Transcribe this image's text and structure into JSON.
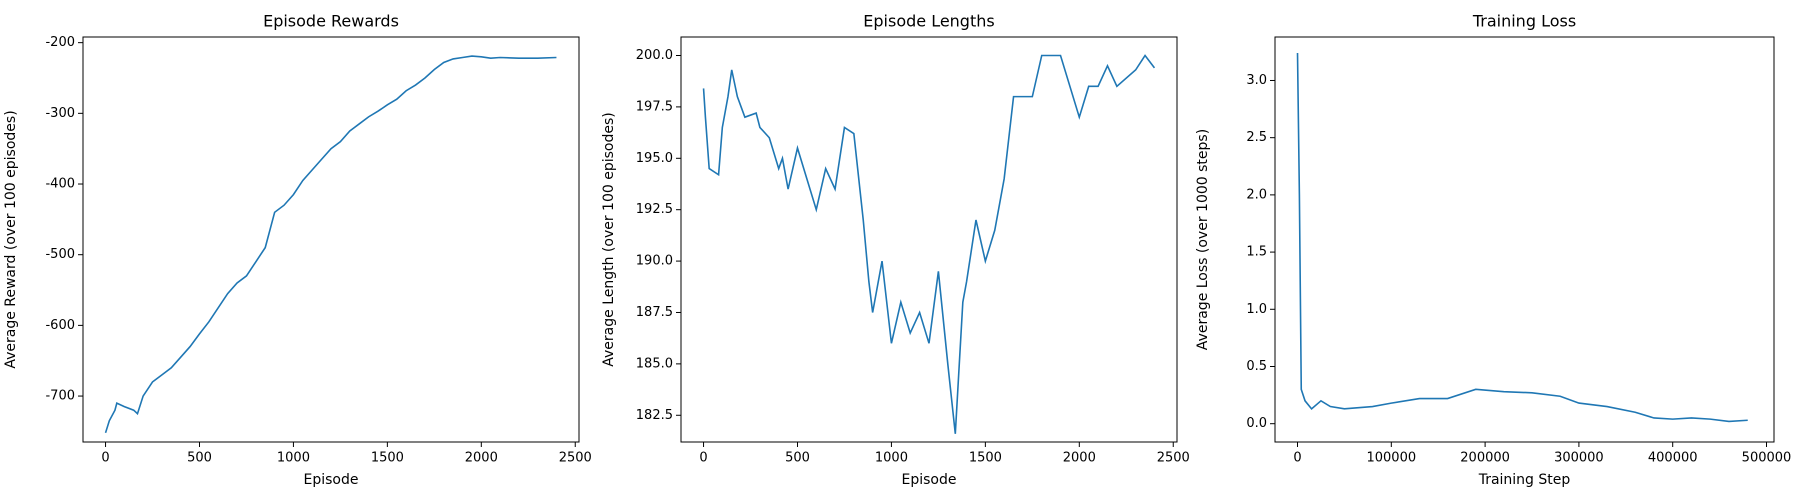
{
  "chart_data": [
    {
      "type": "line",
      "title": "Episode Rewards",
      "xlabel": "Episode",
      "ylabel": "Average Reward (over 100 episodes)",
      "color": "#1f77b4",
      "x": [
        0,
        20,
        50,
        60,
        100,
        150,
        170,
        200,
        250,
        300,
        350,
        400,
        450,
        500,
        550,
        600,
        650,
        700,
        750,
        800,
        850,
        900,
        950,
        1000,
        1050,
        1100,
        1150,
        1200,
        1250,
        1300,
        1350,
        1400,
        1450,
        1500,
        1550,
        1600,
        1650,
        1700,
        1750,
        1800,
        1850,
        1900,
        1950,
        2000,
        2050,
        2100,
        2200,
        2300,
        2400
      ],
      "values": [
        -752,
        -735,
        -720,
        -710,
        -715,
        -720,
        -725,
        -700,
        -680,
        -670,
        -660,
        -645,
        -630,
        -612,
        -595,
        -575,
        -555,
        -540,
        -530,
        -510,
        -490,
        -440,
        -430,
        -415,
        -395,
        -380,
        -365,
        -350,
        -340,
        -325,
        -315,
        -305,
        -297,
        -288,
        -280,
        -268,
        -260,
        -250,
        -238,
        -228,
        -223,
        -221,
        -219,
        -220,
        -222,
        -221,
        -222,
        -222,
        -221
      ],
      "xlim": [
        -120,
        2520
      ],
      "ylim": [
        -765,
        -192
      ],
      "xticks": [
        0,
        500,
        1000,
        1500,
        2000,
        2500
      ],
      "yticks": [
        -700,
        -600,
        -500,
        -400,
        -300,
        -200
      ],
      "grid": false
    },
    {
      "type": "line",
      "title": "Episode Lengths",
      "xlabel": "Episode",
      "ylabel": "Average Length (over 100 episodes)",
      "color": "#1f77b4",
      "x": [
        0,
        10,
        30,
        80,
        100,
        130,
        150,
        180,
        220,
        280,
        300,
        350,
        400,
        420,
        450,
        500,
        550,
        600,
        650,
        700,
        750,
        800,
        850,
        880,
        900,
        950,
        1000,
        1050,
        1100,
        1150,
        1200,
        1250,
        1300,
        1340,
        1380,
        1400,
        1450,
        1500,
        1550,
        1600,
        1650,
        1700,
        1750,
        1800,
        1900,
        2000,
        2050,
        2100,
        2150,
        2200,
        2300,
        2350,
        2400
      ],
      "values": [
        198.4,
        197,
        194.5,
        194.2,
        196.5,
        198,
        199.3,
        198,
        197,
        197.2,
        196.5,
        196,
        194.5,
        195,
        193.5,
        195.5,
        194,
        192.5,
        194.5,
        193.5,
        196.5,
        196.2,
        192,
        189,
        187.5,
        190,
        186,
        188,
        186.5,
        187.5,
        186,
        189.5,
        185,
        181.6,
        188,
        189,
        192,
        190,
        191.5,
        194,
        198,
        198,
        198,
        200,
        200,
        197,
        198.5,
        198.5,
        199.5,
        198.5,
        199.3,
        200,
        199.4
      ],
      "xlim": [
        -120,
        2520
      ],
      "ylim": [
        181.2,
        200.9
      ],
      "xticks": [
        0,
        500,
        1000,
        1500,
        2000,
        2500
      ],
      "yticks": [
        182.5,
        {
          "value": 185,
          "label": "185.0"
        },
        187.5,
        {
          "value": 190,
          "label": "190.0"
        },
        192.5,
        {
          "value": 195,
          "label": "195.0"
        },
        197.5,
        {
          "value": 200,
          "label": "200.0"
        }
      ],
      "grid": false
    },
    {
      "type": "line",
      "title": "Training Loss",
      "xlabel": "Training Step",
      "ylabel": "Average Loss (over 1000 steps)",
      "color": "#1f77b4",
      "x": [
        0,
        2000,
        4000,
        8000,
        15000,
        25000,
        35000,
        50000,
        80000,
        100000,
        130000,
        160000,
        190000,
        220000,
        250000,
        280000,
        300000,
        330000,
        360000,
        380000,
        400000,
        420000,
        440000,
        460000,
        480000
      ],
      "values": [
        3.24,
        2.0,
        0.3,
        0.2,
        0.13,
        0.2,
        0.15,
        0.13,
        0.15,
        0.18,
        0.22,
        0.22,
        0.3,
        0.28,
        0.27,
        0.24,
        0.18,
        0.15,
        0.1,
        0.05,
        0.04,
        0.05,
        0.04,
        0.02,
        0.03
      ],
      "xlim": [
        -24000,
        508000
      ],
      "ylim": [
        -0.16,
        3.38
      ],
      "xticks": [
        0,
        100000,
        200000,
        300000,
        400000,
        500000
      ],
      "yticks": [
        {
          "value": 0,
          "label": "0.0"
        },
        0.5,
        {
          "value": 1,
          "label": "1.0"
        },
        1.5,
        {
          "value": 2,
          "label": "2.0"
        },
        2.5,
        {
          "value": 3,
          "label": "3.0"
        }
      ],
      "grid": false
    }
  ]
}
